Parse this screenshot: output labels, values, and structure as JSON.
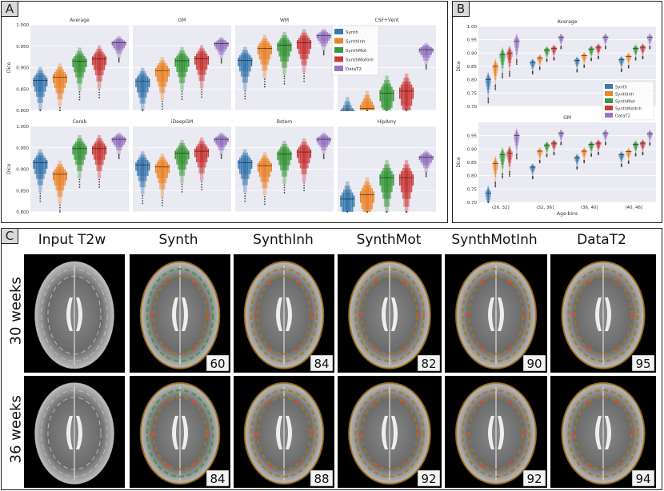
{
  "panels": {
    "a": "A",
    "b": "B",
    "c": "C"
  },
  "colors": {
    "Synth": "#3a78ad",
    "SynthInh": "#e9852d",
    "SynthMot": "#3a973a",
    "SynthMotInh": "#c83a3a",
    "DataT2": "#9574c0"
  },
  "chart_data": [
    {
      "type": "boxen",
      "panel": "A",
      "ylabel": "Dice",
      "legend": {
        "entries": [
          "Synth",
          "SynthInh",
          "SynthMot",
          "SynthMotInh",
          "DataT2"
        ],
        "placement": "top-right"
      },
      "grid": true,
      "subplots": [
        {
          "title": "Average",
          "ylim": [
            0.8,
            1.0
          ],
          "yticks": [
            "0.800",
            "0.850",
            "0.900",
            "0.950",
            "1.000"
          ],
          "medians": {
            "Synth": 0.87,
            "SynthInh": 0.878,
            "SynthMot": 0.915,
            "SynthMotInh": 0.92,
            "DataT2": 0.958
          }
        },
        {
          "title": "GM",
          "ylim": [
            0.8,
            1.0
          ],
          "yticks": [],
          "medians": {
            "Synth": 0.868,
            "SynthInh": 0.893,
            "SynthMot": 0.916,
            "SynthMotInh": 0.921,
            "DataT2": 0.956
          }
        },
        {
          "title": "WM",
          "ylim": [
            0.8,
            1.0
          ],
          "yticks": [],
          "medians": {
            "Synth": 0.917,
            "SynthInh": 0.945,
            "SynthMot": 0.952,
            "SynthMotInh": 0.958,
            "DataT2": 0.975
          }
        },
        {
          "title": "CSF+Vent",
          "ylim": [
            0.8,
            1.0
          ],
          "yticks": [],
          "medians": {
            "Synth": 0.79,
            "SynthInh": 0.805,
            "SynthMot": 0.84,
            "SynthMotInh": 0.845,
            "DataT2": 0.942
          }
        },
        {
          "title": "Cereb",
          "ylim": [
            0.8,
            1.0
          ],
          "yticks": [
            "0.800",
            "0.850",
            "0.900",
            "0.950",
            "1.000"
          ],
          "medians": {
            "Synth": 0.915,
            "SynthInh": 0.888,
            "SynthMot": 0.948,
            "SynthMotInh": 0.948,
            "DataT2": 0.97
          }
        },
        {
          "title": "iDeepGM",
          "ylim": [
            0.8,
            1.0
          ],
          "yticks": [],
          "medians": {
            "Synth": 0.91,
            "SynthInh": 0.905,
            "SynthMot": 0.937,
            "SynthMotInh": 0.942,
            "DataT2": 0.97
          }
        },
        {
          "title": "Bstem",
          "ylim": [
            0.8,
            1.0
          ],
          "yticks": [],
          "medians": {
            "Synth": 0.915,
            "SynthInh": 0.908,
            "SynthMot": 0.935,
            "SynthMotInh": 0.94,
            "DataT2": 0.97
          }
        },
        {
          "title": "HipAmy",
          "ylim": [
            0.8,
            1.0
          ],
          "yticks": [],
          "medians": {
            "Synth": 0.83,
            "SynthInh": 0.84,
            "SynthMot": 0.88,
            "SynthMotInh": 0.88,
            "DataT2": 0.928
          }
        }
      ]
    },
    {
      "type": "boxen",
      "panel": "B",
      "ylabel": "Dice",
      "xlabel": "Age bins",
      "categories": [
        "(26, 32]",
        "(32, 36]",
        "(36, 40]",
        "(40, 46]"
      ],
      "legend": {
        "entries": [
          "Synth",
          "SynthInh",
          "SynthMot",
          "SynthMotInh",
          "DataT2"
        ],
        "placement": "lower-right"
      },
      "subplots": [
        {
          "title": "Average",
          "ylim": [
            0.7,
            1.0
          ],
          "yticks": [
            "0.70",
            "0.75",
            "0.80",
            "0.85",
            "0.90",
            "0.95",
            "1.00"
          ],
          "series": [
            {
              "name": "Synth",
              "values": [
                0.8,
                0.865,
                0.873,
                0.875
              ]
            },
            {
              "name": "SynthInh",
              "values": [
                0.85,
                0.882,
                0.89,
                0.888
              ]
            },
            {
              "name": "SynthMot",
              "values": [
                0.893,
                0.912,
                0.915,
                0.918
              ]
            },
            {
              "name": "SynthMotInh",
              "values": [
                0.9,
                0.918,
                0.922,
                0.922
              ]
            },
            {
              "name": "DataT2",
              "values": [
                0.945,
                0.96,
                0.96,
                0.96
              ]
            }
          ]
        },
        {
          "title": "GM",
          "ylim": [
            0.7,
            1.0
          ],
          "yticks": [
            "0.70",
            "0.75",
            "0.80",
            "0.85",
            "0.90",
            "0.95"
          ],
          "series": [
            {
              "name": "Synth",
              "values": [
                0.735,
                0.832,
                0.868,
                0.878
              ]
            },
            {
              "name": "SynthInh",
              "values": [
                0.845,
                0.892,
                0.892,
                0.89
              ]
            },
            {
              "name": "SynthMot",
              "values": [
                0.878,
                0.915,
                0.917,
                0.918
              ]
            },
            {
              "name": "SynthMotInh",
              "values": [
                0.885,
                0.922,
                0.922,
                0.922
              ]
            },
            {
              "name": "DataT2",
              "values": [
                0.95,
                0.96,
                0.96,
                0.958
              ]
            }
          ]
        }
      ]
    }
  ],
  "panel_c": {
    "columns": [
      "Input T2w",
      "Synth",
      "SynthInh",
      "SynthMot",
      "SynthMotInh",
      "DataT2"
    ],
    "rows": [
      {
        "label": "30 weeks",
        "scores": [
          "60",
          "84",
          "82",
          "90",
          "95"
        ]
      },
      {
        "label": "36 weeks",
        "scores": [
          "84",
          "88",
          "92",
          "92",
          "94"
        ]
      }
    ]
  }
}
